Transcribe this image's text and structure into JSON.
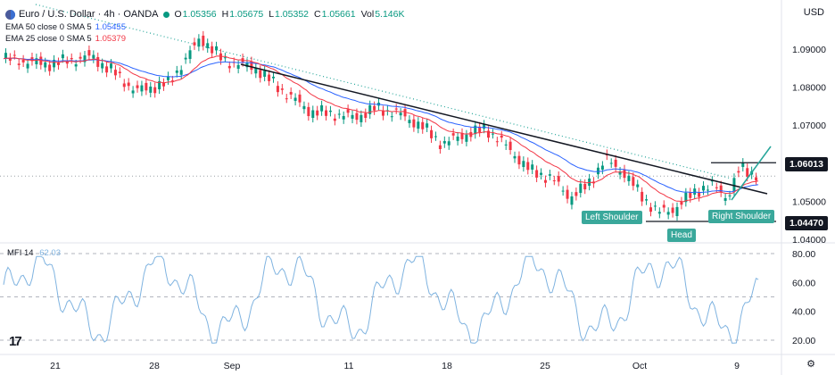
{
  "header": {
    "symbol": "Euro / U.S. Dollar · 4h · OANDA",
    "ohlc": [
      {
        "label": "O",
        "value": "1.05356"
      },
      {
        "label": "H",
        "value": "1.05675"
      },
      {
        "label": "L",
        "value": "1.05352"
      },
      {
        "label": "C",
        "value": "1.05661"
      },
      {
        "label": "Vol",
        "value": "5.146K"
      }
    ],
    "ema50": {
      "label": "EMA 50 close 0 SMA 5",
      "value": "1.05455"
    },
    "ema25": {
      "label": "EMA 25 close 0 SMA 5",
      "value": "1.05379"
    },
    "currency": "USD"
  },
  "price_axis": {
    "ticks": [
      "1.09000",
      "1.08000",
      "1.07000",
      "1.05000",
      "1.04000"
    ],
    "tick_values": [
      1.09,
      1.08,
      1.07,
      1.05,
      1.04
    ],
    "levels": [
      {
        "label": "1.06013",
        "value": 1.06013
      },
      {
        "label": "1.04470",
        "value": 1.0447
      }
    ]
  },
  "time_axis": {
    "labels": [
      "21",
      "28",
      "Sep",
      "11",
      "18",
      "25",
      "Oct",
      "9"
    ]
  },
  "annotations": {
    "left_shoulder": "Left Shoulder",
    "head": "Head",
    "right_shoulder": "Right Shoulder"
  },
  "mfi": {
    "label": "MFI 14",
    "value": "62.03",
    "ticks": [
      "80.00",
      "60.00",
      "40.00",
      "20.00"
    ],
    "tick_values": [
      80,
      60,
      40,
      20
    ]
  },
  "colors": {
    "bull": "#089981",
    "bear": "#f23645",
    "ema50": "#2962ff",
    "ema25": "#f23645",
    "mfi": "#7fb3e0",
    "tag": "#3aa89b",
    "trend": "#131722",
    "breakout": "#26a69a"
  },
  "icons": {
    "logo": "tradingview-logo-icon",
    "settings": "gear-icon"
  }
}
